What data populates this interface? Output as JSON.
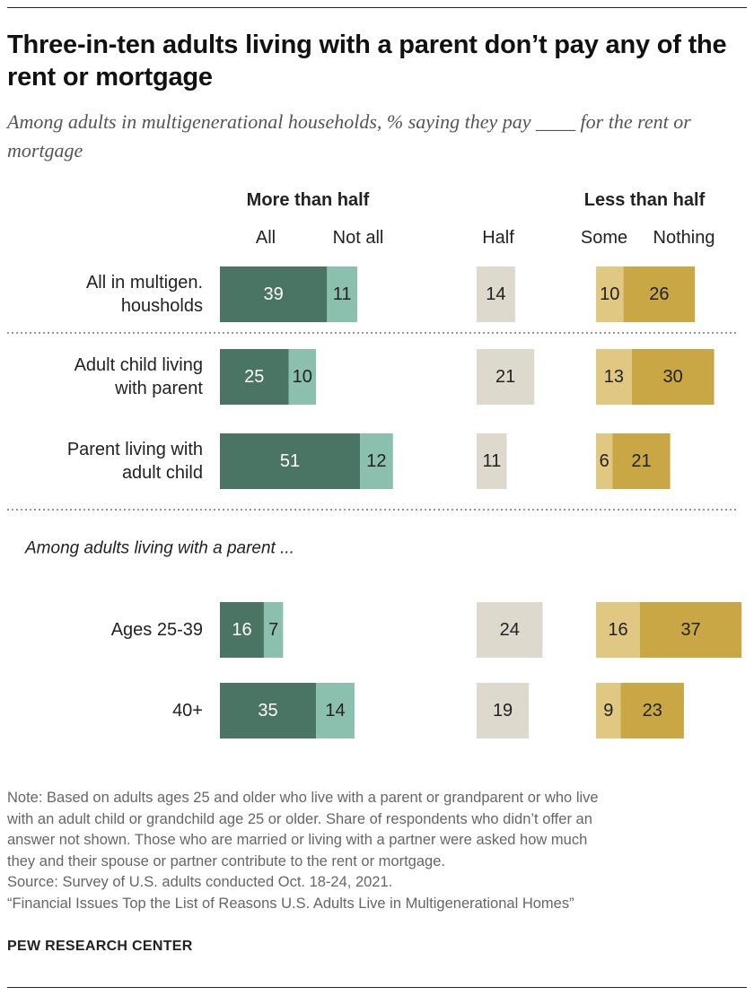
{
  "title": "Three-in-ten adults living with a parent don’t pay any of the rent or mortgage",
  "subtitle": "Among adults in multigenerational households, % saying they pay ____ for the rent or mortgage",
  "chart_data": {
    "type": "bar",
    "subtype": "stacked-horizontal-diverging-groups",
    "group_headers": [
      "More than half",
      "Less than half"
    ],
    "column_headers": {
      "all": "All",
      "not_all": "Not all",
      "half": "Half",
      "some": "Some",
      "nothing": "Nothing"
    },
    "section_label": "Among adults living with a parent ...",
    "colors": {
      "all": "#4a7565",
      "not_all": "#8cc0ae",
      "half": "#ddd9cc",
      "some": "#e0c882",
      "nothing": "#c9a745"
    },
    "rows": [
      {
        "label_lines": [
          "All in multigen.",
          "housholds"
        ],
        "all": 39,
        "not_all": 11,
        "half": 14,
        "some": 10,
        "nothing": 26
      },
      {
        "label_lines": [
          "Adult child living",
          "with parent"
        ],
        "all": 25,
        "not_all": 10,
        "half": 21,
        "some": 13,
        "nothing": 30
      },
      {
        "label_lines": [
          "Parent living with",
          "adult child"
        ],
        "all": 51,
        "not_all": 12,
        "half": 11,
        "some": 6,
        "nothing": 21
      },
      {
        "label_lines": [
          "Ages 25-39"
        ],
        "all": 16,
        "not_all": 7,
        "half": 24,
        "some": 16,
        "nothing": 37
      },
      {
        "label_lines": [
          "40+"
        ],
        "all": 35,
        "not_all": 14,
        "half": 19,
        "some": 9,
        "nothing": 23
      }
    ]
  },
  "notes": [
    "Note: Based on adults ages 25 and older who live with a parent or grandparent or who live",
    "with an adult child or grandchild age 25 or older. Share of respondents who didn’t offer an",
    "answer not shown. Those who are married or living with a partner were asked how much",
    "they and their spouse or partner contribute to the rent or mortgage.",
    "Source: Survey of U.S. adults conducted Oct. 18-24, 2021.",
    "“Financial Issues Top the List of Reasons U.S. Adults Live in Multigenerational Homes”"
  ],
  "brand": "PEW RESEARCH CENTER"
}
